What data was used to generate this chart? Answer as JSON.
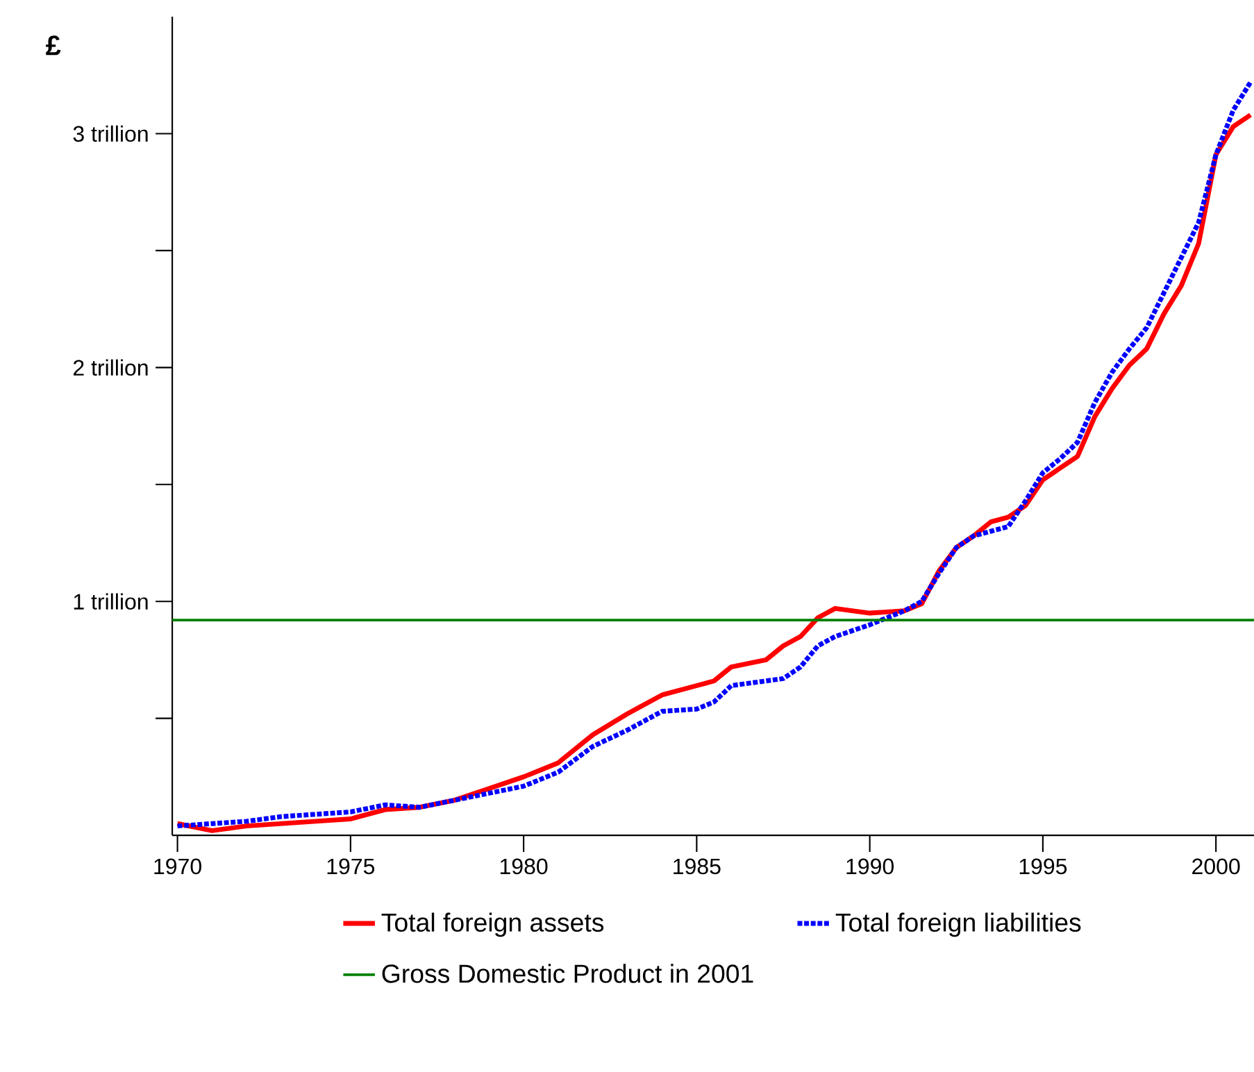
{
  "chart_data": {
    "type": "line",
    "ylabel": "£",
    "xlim": [
      1969.85,
      2001.1
    ],
    "xticks": [
      1970,
      1975,
      1980,
      1985,
      1990,
      1995,
      2000
    ],
    "ylim": [
      0,
      3.5
    ],
    "yticks": [
      {
        "value": 0.5,
        "label": null
      },
      {
        "value": 1,
        "label": "1 trillion"
      },
      {
        "value": 1.5,
        "label": null
      },
      {
        "value": 2,
        "label": "2 trillion"
      },
      {
        "value": 2.5,
        "label": null
      },
      {
        "value": 3,
        "label": "3 trillion"
      }
    ],
    "grid": false,
    "legend": "bottom",
    "marker": "none",
    "series": [
      {
        "name": "Total foreign assets",
        "color": "#ff0000",
        "line_style": "solid",
        "x": [
          1970,
          1971,
          1972,
          1973,
          1974,
          1975,
          1976,
          1977,
          1978,
          1979,
          1980,
          1981,
          1982,
          1983,
          1984,
          1985,
          1985.5,
          1986,
          1987,
          1987.5,
          1988,
          1988.5,
          1989,
          1990,
          1991,
          1991.5,
          1992,
          1992.5,
          1993,
          1993.5,
          1994,
          1994.5,
          1995,
          1995.5,
          1996,
          1996.5,
          1997,
          1997.5,
          1998,
          1998.5,
          1999,
          1999.5,
          2000,
          2000.5,
          2001
        ],
        "values": [
          0.05,
          0.02,
          0.04,
          0.05,
          0.06,
          0.07,
          0.11,
          0.12,
          0.15,
          0.2,
          0.25,
          0.31,
          0.43,
          0.52,
          0.6,
          0.64,
          0.66,
          0.72,
          0.75,
          0.81,
          0.85,
          0.93,
          0.97,
          0.95,
          0.96,
          0.99,
          1.13,
          1.23,
          1.28,
          1.34,
          1.36,
          1.41,
          1.52,
          1.57,
          1.62,
          1.79,
          1.91,
          2.01,
          2.08,
          2.23,
          2.35,
          2.53,
          2.91,
          3.03,
          3.08
        ]
      },
      {
        "name": "Total foreign liabilities",
        "color": "#0000ff",
        "line_style": "dotted",
        "x": [
          1970,
          1971,
          1972,
          1973,
          1974,
          1975,
          1976,
          1977,
          1978,
          1979,
          1980,
          1981,
          1982,
          1983,
          1984,
          1985,
          1985.5,
          1986,
          1987,
          1987.5,
          1988,
          1988.5,
          1989,
          1990,
          1991,
          1991.5,
          1992,
          1992.5,
          1993,
          1993.5,
          1994,
          1994.5,
          1995,
          1995.5,
          1996,
          1996.5,
          1997,
          1997.5,
          1998,
          1998.5,
          1999,
          1999.5,
          2000,
          2000.5,
          2001
        ],
        "values": [
          0.04,
          0.05,
          0.06,
          0.08,
          0.09,
          0.1,
          0.13,
          0.12,
          0.15,
          0.18,
          0.21,
          0.27,
          0.38,
          0.45,
          0.53,
          0.54,
          0.57,
          0.64,
          0.66,
          0.67,
          0.72,
          0.81,
          0.85,
          0.9,
          0.96,
          1.0,
          1.12,
          1.23,
          1.28,
          1.3,
          1.32,
          1.43,
          1.55,
          1.61,
          1.68,
          1.85,
          1.98,
          2.08,
          2.17,
          2.32,
          2.47,
          2.62,
          2.91,
          3.1,
          3.22
        ]
      }
    ],
    "ref_lines": [
      {
        "axis": "y",
        "value": 0.92,
        "label": "Gross Domestic Product in 2001",
        "color": "#008000",
        "line_style": "solid"
      }
    ]
  }
}
